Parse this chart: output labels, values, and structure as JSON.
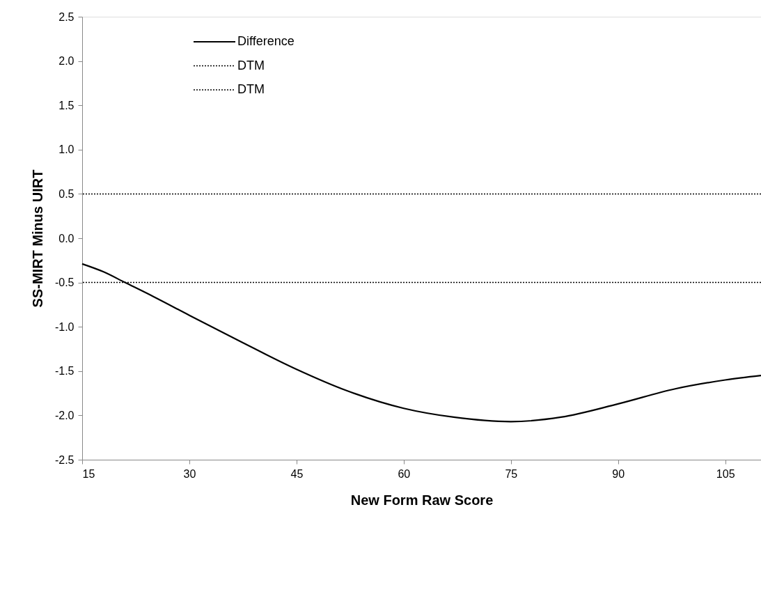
{
  "chart_data": {
    "type": "line",
    "xlabel": "New Form Raw Score",
    "ylabel": "SS-MIRT Minus UIRT",
    "xlim": [
      15,
      110
    ],
    "xticks": [
      15,
      30,
      45,
      60,
      75,
      90,
      105
    ],
    "ylim": [
      -2.5,
      2.5
    ],
    "yticks": [
      {
        "value": -2.5,
        "label": "-2.5"
      },
      {
        "value": -2,
        "label": "-2.0"
      },
      {
        "value": -1.5,
        "label": "-1.5"
      },
      {
        "value": -1,
        "label": "-1.0"
      },
      {
        "value": -0.5,
        "label": "-0.5"
      },
      {
        "value": 0,
        "label": "0.0"
      },
      {
        "value": 0.5,
        "label": "0.5"
      },
      {
        "value": 1,
        "label": "1.0"
      },
      {
        "value": 1.5,
        "label": "1.5"
      },
      {
        "value": 2,
        "label": "2.0"
      },
      {
        "value": 2.5,
        "label": "2.5"
      }
    ],
    "grid": false,
    "legend": "top left",
    "line_style": "solid",
    "marker": "none",
    "series": [
      {
        "name": "Difference",
        "color": "#000000",
        "x": [
          15,
          18,
          21,
          25,
          30,
          37,
          45,
          52,
          60,
          67,
          75,
          82,
          90,
          98,
          105,
          110
        ],
        "values": [
          -0.29,
          -0.38,
          -0.5,
          -0.66,
          -0.87,
          -1.16,
          -1.48,
          -1.72,
          -1.92,
          -2.02,
          -2.07,
          -2.02,
          -1.87,
          -1.7,
          -1.6,
          -1.55
        ]
      }
    ],
    "ref_lines": [
      {
        "axis": "y",
        "value": 0.5,
        "label": "DTM",
        "color": "#000000",
        "line_style": "dotted"
      },
      {
        "axis": "y",
        "value": -0.5,
        "label": "DTM",
        "color": "#000000",
        "line_style": "dotted"
      }
    ]
  }
}
